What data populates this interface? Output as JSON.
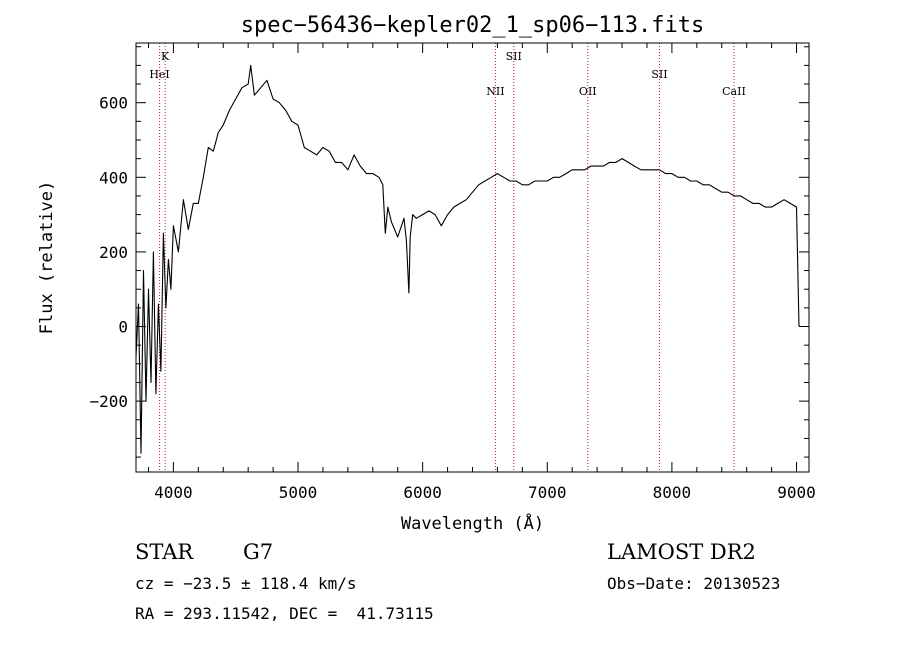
{
  "chart_data": {
    "type": "line",
    "title": "spec−56436−kepler02_1_sp06−113.fits",
    "xlabel": "Wavelength (Å)",
    "ylabel": "Flux (relative)",
    "xlim": [
      3700,
      9100
    ],
    "ylim": [
      -390,
      760
    ],
    "xticks": [
      4000,
      5000,
      6000,
      7000,
      8000,
      9000
    ],
    "yticks": [
      -200,
      0,
      200,
      400,
      600
    ],
    "grid": false,
    "series": [
      {
        "color": "#000000",
        "x": [
          3700,
          3720,
          3740,
          3760,
          3780,
          3800,
          3820,
          3840,
          3860,
          3880,
          3900,
          3920,
          3940,
          3960,
          3980,
          4000,
          4040,
          4080,
          4120,
          4160,
          4200,
          4240,
          4280,
          4320,
          4360,
          4400,
          4450,
          4500,
          4550,
          4600,
          4620,
          4650,
          4700,
          4750,
          4800,
          4850,
          4900,
          4950,
          5000,
          5050,
          5100,
          5150,
          5200,
          5250,
          5300,
          5350,
          5400,
          5450,
          5500,
          5550,
          5600,
          5650,
          5680,
          5700,
          5720,
          5750,
          5800,
          5850,
          5870,
          5890,
          5900,
          5920,
          5950,
          6000,
          6050,
          6100,
          6150,
          6200,
          6250,
          6300,
          6350,
          6400,
          6450,
          6500,
          6550,
          6600,
          6650,
          6700,
          6750,
          6800,
          6850,
          6900,
          6950,
          7000,
          7050,
          7100,
          7150,
          7200,
          7250,
          7300,
          7350,
          7400,
          7450,
          7500,
          7550,
          7600,
          7650,
          7700,
          7750,
          7800,
          7850,
          7900,
          7950,
          8000,
          8050,
          8100,
          8150,
          8200,
          8250,
          8300,
          8350,
          8400,
          8450,
          8500,
          8550,
          8600,
          8650,
          8700,
          8750,
          8800,
          8850,
          8900,
          8950,
          9000,
          9020
        ],
        "y": [
          -80,
          60,
          -340,
          150,
          -200,
          100,
          -150,
          200,
          -180,
          60,
          -120,
          250,
          50,
          180,
          100,
          270,
          200,
          340,
          260,
          330,
          330,
          400,
          480,
          470,
          520,
          540,
          580,
          610,
          640,
          650,
          700,
          620,
          640,
          660,
          610,
          600,
          580,
          550,
          540,
          480,
          470,
          460,
          480,
          470,
          440,
          440,
          420,
          460,
          430,
          410,
          410,
          400,
          380,
          250,
          320,
          280,
          240,
          290,
          230,
          90,
          240,
          300,
          290,
          300,
          310,
          300,
          270,
          300,
          320,
          330,
          340,
          360,
          380,
          390,
          400,
          410,
          400,
          390,
          390,
          380,
          380,
          390,
          390,
          390,
          400,
          400,
          410,
          420,
          420,
          420,
          430,
          430,
          430,
          440,
          440,
          450,
          440,
          430,
          420,
          420,
          420,
          420,
          410,
          410,
          400,
          400,
          390,
          390,
          380,
          380,
          370,
          360,
          360,
          350,
          350,
          340,
          330,
          330,
          320,
          320,
          330,
          340,
          330,
          320,
          0
        ]
      }
    ],
    "line_markers": [
      {
        "label": "K",
        "x": 3934,
        "row": 0
      },
      {
        "label": "HeI",
        "x": 3889,
        "row": 1
      },
      {
        "label": "SII",
        "x": 6731,
        "row": 0
      },
      {
        "label": "NII",
        "x": 6584,
        "row": 2
      },
      {
        "label": "OII",
        "x": 7325,
        "row": 2
      },
      {
        "label": "SII",
        "x": 7900,
        "row": 1
      },
      {
        "label": "CaII",
        "x": 8498,
        "row": 2
      }
    ],
    "marker_color": "#b22222"
  },
  "info": {
    "class": "STAR",
    "subclass": "G7",
    "survey": "LAMOST DR2",
    "cz": "cz = −23.5 ± 118.4 km/s",
    "obs_date": "Obs−Date: 20130523",
    "coords": "RA = 293.11542, DEC =  41.73115"
  }
}
